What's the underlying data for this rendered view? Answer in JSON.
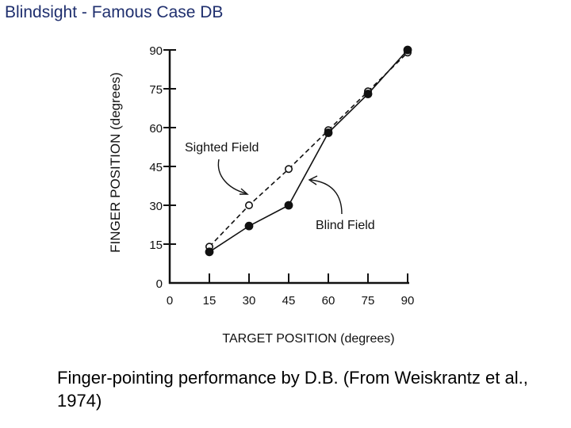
{
  "slide": {
    "title": "Blindsight - Famous Case DB",
    "caption": "Finger-pointing performance by D.B. (From Weiskrantz et al., 1974)"
  },
  "chart_data": {
    "type": "line",
    "xlabel": "TARGET POSITION (degrees)",
    "ylabel": "FINGER POSITION (degrees)",
    "xlim": [
      0,
      90
    ],
    "ylim": [
      0,
      90
    ],
    "x_ticks": [
      0,
      15,
      30,
      45,
      60,
      75,
      90
    ],
    "y_ticks": [
      0,
      15,
      30,
      45,
      60,
      75,
      90
    ],
    "x_tick_labels": [
      "0",
      "15",
      "30",
      "45",
      "60",
      "75",
      "90"
    ],
    "y_tick_labels": [
      "0",
      "15",
      "30",
      "45",
      "60",
      "75",
      "90"
    ],
    "grid": false,
    "series": [
      {
        "name": "Sighted Field",
        "marker": "open-circle",
        "line_style": "dashed",
        "x": [
          15,
          30,
          45,
          60,
          75,
          90
        ],
        "y": [
          14,
          30,
          44,
          59,
          74,
          89
        ]
      },
      {
        "name": "Blind Field",
        "marker": "filled-circle",
        "line_style": "solid",
        "x": [
          15,
          30,
          45,
          60,
          75,
          90
        ],
        "y": [
          12,
          22,
          30,
          58,
          73,
          90
        ]
      }
    ],
    "annotations": [
      "Sighted Field",
      "Blind Field"
    ]
  }
}
